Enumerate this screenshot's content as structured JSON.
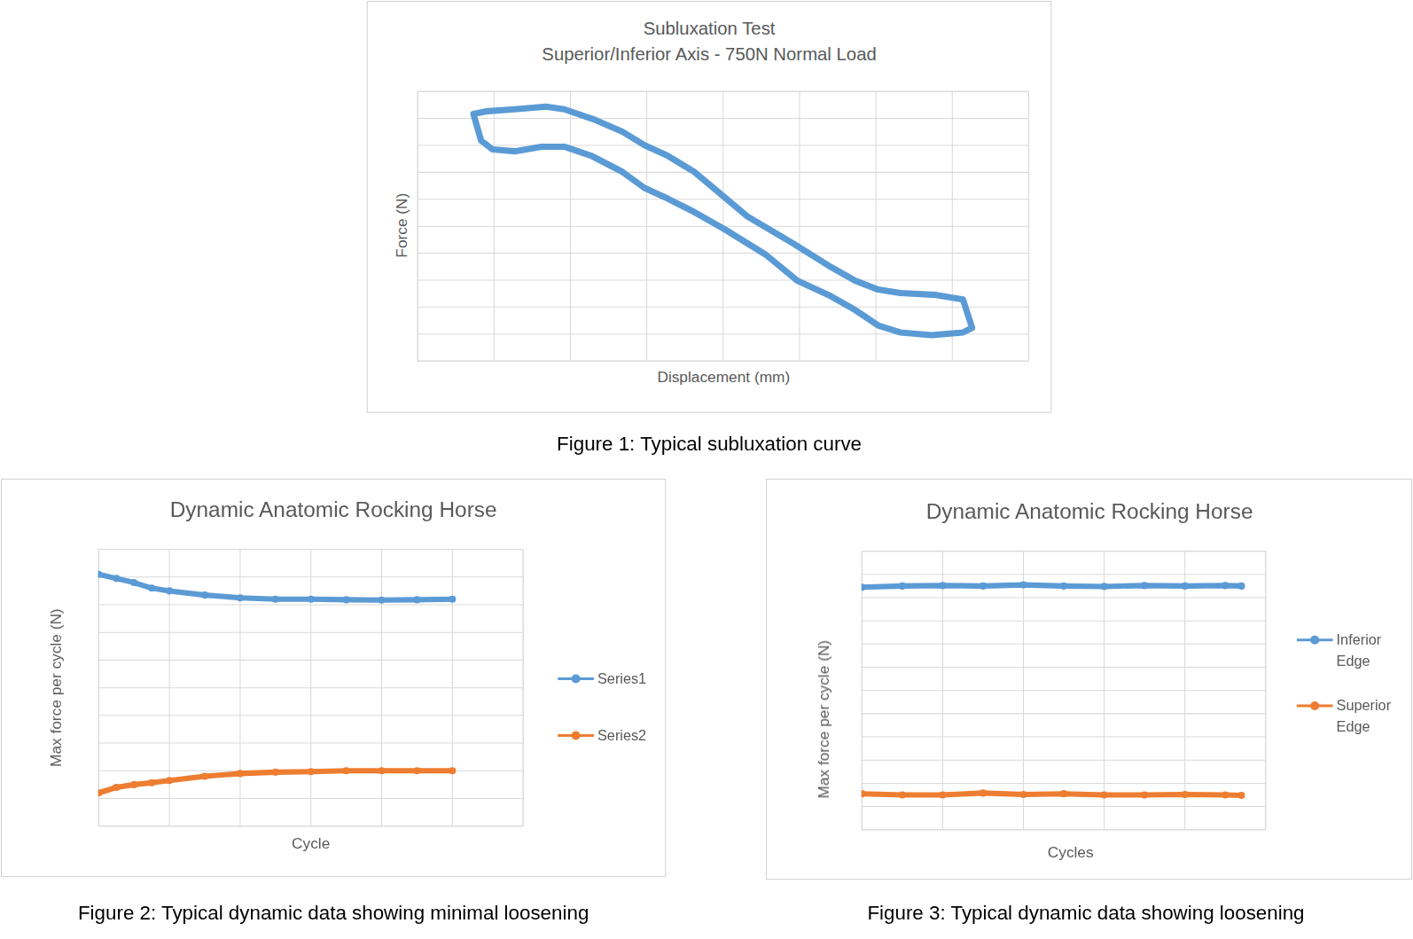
{
  "chart_data": [
    {
      "type": "line",
      "title": "Subluxation Test",
      "subtitle": "Superior/Inferior Axis - 750N Normal Load",
      "x_label": "Displacement (mm)",
      "y_label": "Force (N)",
      "caption": "Figure 1: Typical subluxation curve",
      "xlim": [
        0,
        8
      ],
      "xticks": [
        0,
        1,
        2,
        3,
        4,
        5,
        6,
        7,
        8
      ],
      "ylim": [
        0,
        10
      ],
      "yticks": [
        0,
        1,
        2,
        3,
        4,
        5,
        6,
        7,
        8,
        9,
        10
      ],
      "grid": true,
      "tick_labels": false,
      "x": [
        0.73,
        0.92,
        1.27,
        1.68,
        1.92,
        2.33,
        2.68,
        2.97,
        3.27,
        3.62,
        3.97,
        4.32,
        4.91,
        5.38,
        5.73,
        6.03,
        6.32,
        6.79,
        7.14,
        7.26,
        7.14,
        6.73,
        6.32,
        6.03,
        5.73,
        5.38,
        4.97,
        4.56,
        4.03,
        3.62,
        3.27,
        2.97,
        2.68,
        2.27,
        1.92,
        1.62,
        1.27,
        0.98,
        0.83,
        0.73
      ],
      "series": [
        {
          "color": "#5b9bd5",
          "line_style": "solid",
          "values": [
            9.17,
            9.27,
            9.34,
            9.44,
            9.34,
            8.94,
            8.51,
            8.01,
            7.62,
            7.02,
            6.19,
            5.36,
            4.37,
            3.54,
            2.98,
            2.65,
            2.52,
            2.45,
            2.28,
            1.23,
            1.06,
            0.96,
            1.06,
            1.32,
            1.89,
            2.45,
            2.98,
            3.94,
            4.87,
            5.53,
            6.03,
            6.42,
            7.02,
            7.62,
            7.95,
            7.95,
            7.78,
            7.85,
            8.18,
            9.17
          ]
        }
      ]
    },
    {
      "type": "line",
      "title": "Dynamic Anatomic Rocking Horse",
      "x_label": "Cycle",
      "y_label": "Max force per cycle (N)",
      "caption": "Figure 2: Typical dynamic data showing minimal loosening",
      "xlim": [
        0,
        6
      ],
      "xticks": [
        0,
        1,
        2,
        3,
        4,
        5,
        6
      ],
      "ylim": [
        0,
        10
      ],
      "yticks": [
        0,
        1,
        2,
        3,
        4,
        5,
        6,
        7,
        8,
        9,
        10
      ],
      "grid": true,
      "tick_labels": false,
      "legend": "right",
      "marker": "circle",
      "x": [
        0,
        0.25,
        0.5,
        0.75,
        1,
        1.5,
        2,
        2.5,
        3,
        3.5,
        4,
        4.5,
        5
      ],
      "series": [
        {
          "name": "Series1",
          "color": "#5b9bd5",
          "values": [
            9.1,
            8.95,
            8.8,
            8.6,
            8.5,
            8.35,
            8.25,
            8.2,
            8.2,
            8.18,
            8.17,
            8.18,
            8.2
          ]
        },
        {
          "name": "Series2",
          "color": "#ed7d31",
          "values": [
            1.2,
            1.4,
            1.5,
            1.57,
            1.65,
            1.8,
            1.9,
            1.95,
            1.97,
            2.0,
            2.0,
            2.0,
            2.0
          ]
        }
      ]
    },
    {
      "type": "line",
      "title": "Dynamic Anatomic Rocking Horse",
      "x_label": "Cycles",
      "y_label": "Max force per cycle (N)",
      "caption": "Figure 3: Typical dynamic data showing loosening",
      "xlim": [
        0,
        5
      ],
      "xticks": [
        0,
        1,
        2,
        3,
        4,
        5
      ],
      "ylim": [
        0,
        12
      ],
      "yticks": [
        0,
        1,
        2,
        3,
        4,
        5,
        6,
        7,
        8,
        9,
        10,
        11,
        12
      ],
      "grid": true,
      "tick_labels": false,
      "legend": "right",
      "marker": "circle",
      "x": [
        0,
        0.5,
        1,
        1.5,
        2,
        2.5,
        3,
        3.5,
        4,
        4.5,
        4.7
      ],
      "series": [
        {
          "name": "Inferior Edge",
          "color": "#5b9bd5",
          "values": [
            10.45,
            10.5,
            10.52,
            10.5,
            10.55,
            10.5,
            10.48,
            10.52,
            10.5,
            10.52,
            10.5
          ]
        },
        {
          "name": "Superior Edge",
          "color": "#ed7d31",
          "values": [
            1.55,
            1.5,
            1.5,
            1.58,
            1.52,
            1.55,
            1.5,
            1.5,
            1.52,
            1.5,
            1.48
          ]
        }
      ]
    }
  ]
}
